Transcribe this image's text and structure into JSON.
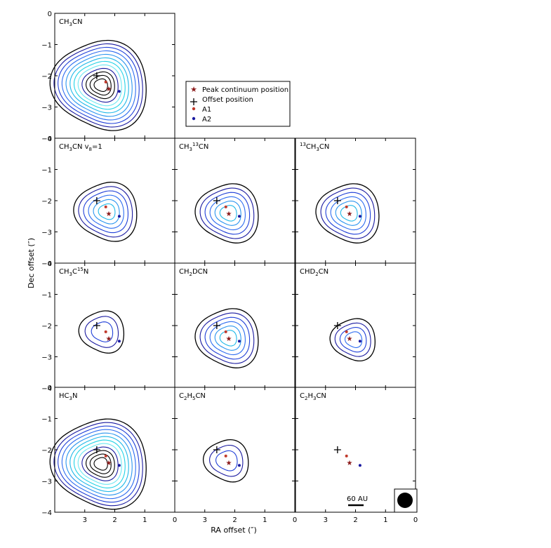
{
  "figure": {
    "xlabel": "RA offset (″)",
    "ylabel": "Dec offset (″)",
    "scale_bar_label": "60 AU"
  },
  "legend": {
    "items": [
      {
        "label": "Peak continuum position",
        "marker": "star",
        "color": "#8b1a1a"
      },
      {
        "label": "Offset position",
        "marker": "plus",
        "color": "#000000"
      },
      {
        "label": "A1",
        "marker": "dot",
        "color": "#c0392b"
      },
      {
        "label": "A2",
        "marker": "dot",
        "color": "#1a1aa0"
      }
    ]
  },
  "colors": {
    "contour_levels": [
      "#000000",
      "#1a1aa0",
      "#1f3fd8",
      "#2d6cf0",
      "#2a95ef",
      "#20b8e8",
      "#22d3e6",
      "#6ee8f2"
    ],
    "peak": "#8b1a1a",
    "a1": "#c0392b",
    "a2": "#1a1aa0"
  },
  "chart_data": [
    {
      "type": "contour",
      "panel": "CH3CN",
      "title_main": "CH",
      "title_sub1": "3",
      "title_rest": "CN",
      "xlim": [
        4,
        0
      ],
      "ylim": [
        -4,
        0
      ],
      "xticks": [
        3,
        2,
        1,
        0
      ],
      "yticks": [
        0,
        -1,
        -2,
        -3,
        -4
      ],
      "levels": 12,
      "center": [
        2.45,
        -2.3
      ]
    },
    {
      "type": "contour",
      "panel": "CH3CN v8=1",
      "title_main": "CH",
      "title_sub1": "3",
      "title_rest": "CN  v",
      "title_sub2": "8",
      "title_tail": "=1",
      "xlim": [
        4,
        0
      ],
      "ylim": [
        -4,
        0
      ],
      "levels": 6,
      "center": [
        2.25,
        -2.35
      ]
    },
    {
      "type": "contour",
      "panel": "CH3 13CN",
      "title_main": "CH",
      "title_sub1": "3",
      "title_sup": "13",
      "title_rest": "CN",
      "xlim": [
        4,
        0
      ],
      "ylim": [
        -4,
        0
      ],
      "levels": 6,
      "center": [
        2.2,
        -2.4
      ]
    },
    {
      "type": "contour",
      "panel": "13CH3CN",
      "title_pre_sup": "13",
      "title_main": "CH",
      "title_sub1": "3",
      "title_rest": "CN",
      "xlim": [
        4,
        0
      ],
      "ylim": [
        -4,
        0
      ],
      "levels": 6,
      "center": [
        2.2,
        -2.4
      ]
    },
    {
      "type": "contour",
      "panel": "CH3C15N",
      "title_main": "CH",
      "title_sub1": "3",
      "title_rest": "C",
      "title_sup": "15",
      "title_tail": "N",
      "xlim": [
        4,
        0
      ],
      "ylim": [
        -4,
        0
      ],
      "levels": 3,
      "center": [
        2.4,
        -2.2
      ]
    },
    {
      "type": "contour",
      "panel": "CH2DCN",
      "title_main": "CH",
      "title_sub1": "2",
      "title_rest": "DCN",
      "xlim": [
        4,
        0
      ],
      "ylim": [
        -4,
        0
      ],
      "levels": 6,
      "center": [
        2.2,
        -2.4
      ]
    },
    {
      "type": "contour",
      "panel": "CHD2CN",
      "title_main": "CHD",
      "title_sub1": "2",
      "title_rest": "CN",
      "xlim": [
        4,
        0
      ],
      "ylim": [
        -4,
        0
      ],
      "levels": 4,
      "center": [
        2.05,
        -2.45
      ]
    },
    {
      "type": "contour",
      "panel": "HC3N",
      "title_main": "HC",
      "title_sub1": "3",
      "title_rest": "N",
      "xlim": [
        4,
        0
      ],
      "ylim": [
        -4,
        0
      ],
      "levels": 12,
      "center": [
        2.45,
        -2.45
      ]
    },
    {
      "type": "contour",
      "panel": "C2H5CN",
      "title_main": "C",
      "title_sub1": "2",
      "title_rest": "H",
      "title_sub2": "5",
      "title_tail": "CN",
      "xlim": [
        4,
        0
      ],
      "ylim": [
        -4,
        0
      ],
      "levels": 3,
      "center": [
        2.25,
        -2.35
      ]
    },
    {
      "type": "contour",
      "panel": "C2H3CN",
      "title_main": "C",
      "title_sub1": "2",
      "title_rest": "H",
      "title_sub2": "3",
      "title_tail": "CN",
      "xlim": [
        4,
        0
      ],
      "ylim": [
        -4,
        0
      ],
      "levels": 0,
      "center": [
        2.2,
        -2.3
      ]
    }
  ],
  "markers": {
    "offset": [
      2.6,
      -2.0
    ],
    "peak": [
      2.2,
      -2.4
    ],
    "a1": [
      2.3,
      -2.2
    ],
    "a2": [
      1.85,
      -2.5
    ]
  },
  "tick_labels": {
    "x": [
      "3",
      "2",
      "1",
      "0"
    ],
    "y": [
      "0",
      "−1",
      "−2",
      "−3",
      "−4"
    ]
  }
}
